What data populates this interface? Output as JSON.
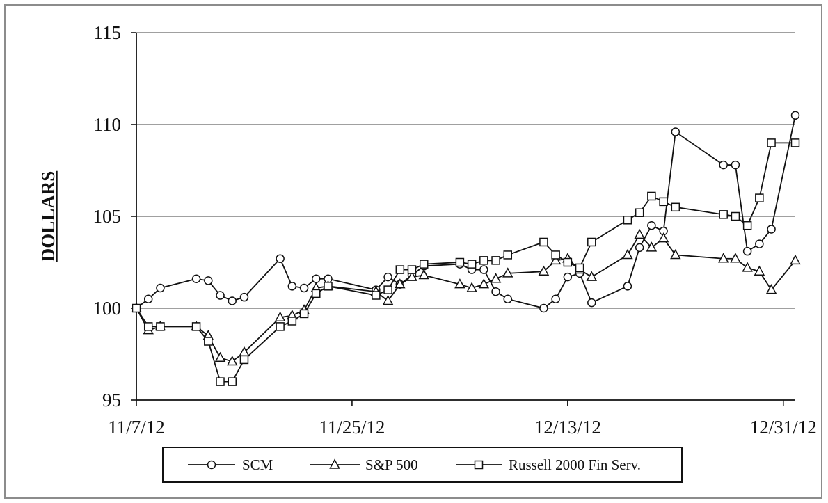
{
  "chart_data": {
    "type": "line",
    "title": "",
    "xlabel": "",
    "ylabel": "DOLLARS",
    "ylim": [
      95,
      115
    ],
    "xlim": [
      "2012-11-07",
      "2013-01-01"
    ],
    "grid": "horizontal",
    "legend_position": "bottom",
    "y_ticks": [
      "95",
      "100",
      "105",
      "110",
      "115"
    ],
    "x_ticks": [
      {
        "label": "11/7/12",
        "date": "2012-11-07"
      },
      {
        "label": "11/25/12",
        "date": "2012-11-25"
      },
      {
        "label": "12/13/12",
        "date": "2012-12-13"
      },
      {
        "label": "12/31/12",
        "date": "2012-12-31"
      }
    ],
    "series": [
      {
        "name": "SCM",
        "marker": "circle",
        "points": [
          [
            "2012-11-07",
            100.0
          ],
          [
            "2012-11-08",
            100.5
          ],
          [
            "2012-11-09",
            101.1
          ],
          [
            "2012-11-12",
            101.6
          ],
          [
            "2012-11-13",
            101.5
          ],
          [
            "2012-11-14",
            100.7
          ],
          [
            "2012-11-15",
            100.4
          ],
          [
            "2012-11-16",
            100.6
          ],
          [
            "2012-11-19",
            102.7
          ],
          [
            "2012-11-20",
            101.2
          ],
          [
            "2012-11-21",
            101.1
          ],
          [
            "2012-11-22",
            101.6
          ],
          [
            "2012-11-23",
            101.6
          ],
          [
            "2012-11-27",
            101.0
          ],
          [
            "2012-11-28",
            101.7
          ],
          [
            "2012-11-29",
            101.3
          ],
          [
            "2012-11-30",
            101.8
          ],
          [
            "2012-12-01",
            102.3
          ],
          [
            "2012-12-04",
            102.4
          ],
          [
            "2012-12-05",
            102.1
          ],
          [
            "2012-12-06",
            102.1
          ],
          [
            "2012-12-07",
            100.9
          ],
          [
            "2012-12-08",
            100.5
          ],
          [
            "2012-12-11",
            100.0
          ],
          [
            "2012-12-12",
            100.5
          ],
          [
            "2012-12-13",
            101.7
          ],
          [
            "2012-12-14",
            101.9
          ],
          [
            "2012-12-15",
            100.3
          ],
          [
            "2012-12-18",
            101.2
          ],
          [
            "2012-12-19",
            103.3
          ],
          [
            "2012-12-20",
            104.5
          ],
          [
            "2012-12-21",
            104.2
          ],
          [
            "2012-12-22",
            109.6
          ],
          [
            "2012-12-26",
            107.8
          ],
          [
            "2012-12-27",
            107.8
          ],
          [
            "2012-12-28",
            103.1
          ],
          [
            "2012-12-29",
            103.5
          ],
          [
            "2012-12-30",
            104.3
          ],
          [
            "2013-01-01",
            110.5
          ]
        ]
      },
      {
        "name": "S&P 500",
        "marker": "triangle",
        "points": [
          [
            "2012-11-07",
            100.0
          ],
          [
            "2012-11-08",
            98.8
          ],
          [
            "2012-11-09",
            99.0
          ],
          [
            "2012-11-12",
            99.0
          ],
          [
            "2012-11-13",
            98.5
          ],
          [
            "2012-11-14",
            97.3
          ],
          [
            "2012-11-15",
            97.1
          ],
          [
            "2012-11-16",
            97.6
          ],
          [
            "2012-11-19",
            99.5
          ],
          [
            "2012-11-20",
            99.6
          ],
          [
            "2012-11-21",
            99.9
          ],
          [
            "2012-11-22",
            101.1
          ],
          [
            "2012-11-23",
            101.2
          ],
          [
            "2012-11-27",
            100.9
          ],
          [
            "2012-11-28",
            100.4
          ],
          [
            "2012-11-29",
            101.3
          ],
          [
            "2012-11-30",
            101.7
          ],
          [
            "2012-12-01",
            101.8
          ],
          [
            "2012-12-04",
            101.3
          ],
          [
            "2012-12-05",
            101.1
          ],
          [
            "2012-12-06",
            101.3
          ],
          [
            "2012-12-07",
            101.6
          ],
          [
            "2012-12-08",
            101.9
          ],
          [
            "2012-12-11",
            102.0
          ],
          [
            "2012-12-12",
            102.6
          ],
          [
            "2012-12-13",
            102.7
          ],
          [
            "2012-12-14",
            102.1
          ],
          [
            "2012-12-15",
            101.7
          ],
          [
            "2012-12-18",
            102.9
          ],
          [
            "2012-12-19",
            104.0
          ],
          [
            "2012-12-20",
            103.3
          ],
          [
            "2012-12-21",
            103.8
          ],
          [
            "2012-12-22",
            102.9
          ],
          [
            "2012-12-26",
            102.7
          ],
          [
            "2012-12-27",
            102.7
          ],
          [
            "2012-12-28",
            102.2
          ],
          [
            "2012-12-29",
            102.0
          ],
          [
            "2012-12-30",
            101.0
          ],
          [
            "2013-01-01",
            102.6
          ]
        ]
      },
      {
        "name": "Russell 2000 Fin Serv.",
        "marker": "square",
        "points": [
          [
            "2012-11-07",
            100.0
          ],
          [
            "2012-11-08",
            99.0
          ],
          [
            "2012-11-09",
            99.0
          ],
          [
            "2012-11-12",
            99.0
          ],
          [
            "2012-11-13",
            98.2
          ],
          [
            "2012-11-14",
            96.0
          ],
          [
            "2012-11-15",
            96.0
          ],
          [
            "2012-11-16",
            97.2
          ],
          [
            "2012-11-19",
            99.0
          ],
          [
            "2012-11-20",
            99.3
          ],
          [
            "2012-11-21",
            99.7
          ],
          [
            "2012-11-22",
            100.8
          ],
          [
            "2012-11-23",
            101.2
          ],
          [
            "2012-11-27",
            100.7
          ],
          [
            "2012-11-28",
            101.0
          ],
          [
            "2012-11-29",
            102.1
          ],
          [
            "2012-11-30",
            102.1
          ],
          [
            "2012-12-01",
            102.4
          ],
          [
            "2012-12-04",
            102.5
          ],
          [
            "2012-12-05",
            102.4
          ],
          [
            "2012-12-06",
            102.6
          ],
          [
            "2012-12-07",
            102.6
          ],
          [
            "2012-12-08",
            102.9
          ],
          [
            "2012-12-11",
            103.6
          ],
          [
            "2012-12-12",
            102.9
          ],
          [
            "2012-12-13",
            102.5
          ],
          [
            "2012-12-14",
            102.2
          ],
          [
            "2012-12-15",
            103.6
          ],
          [
            "2012-12-18",
            104.8
          ],
          [
            "2012-12-19",
            105.2
          ],
          [
            "2012-12-20",
            106.1
          ],
          [
            "2012-12-21",
            105.8
          ],
          [
            "2012-12-22",
            105.5
          ],
          [
            "2012-12-26",
            105.1
          ],
          [
            "2012-12-27",
            105.0
          ],
          [
            "2012-12-28",
            104.5
          ],
          [
            "2012-12-29",
            106.0
          ],
          [
            "2012-12-30",
            109.0
          ],
          [
            "2013-01-01",
            109.0
          ]
        ]
      }
    ]
  }
}
